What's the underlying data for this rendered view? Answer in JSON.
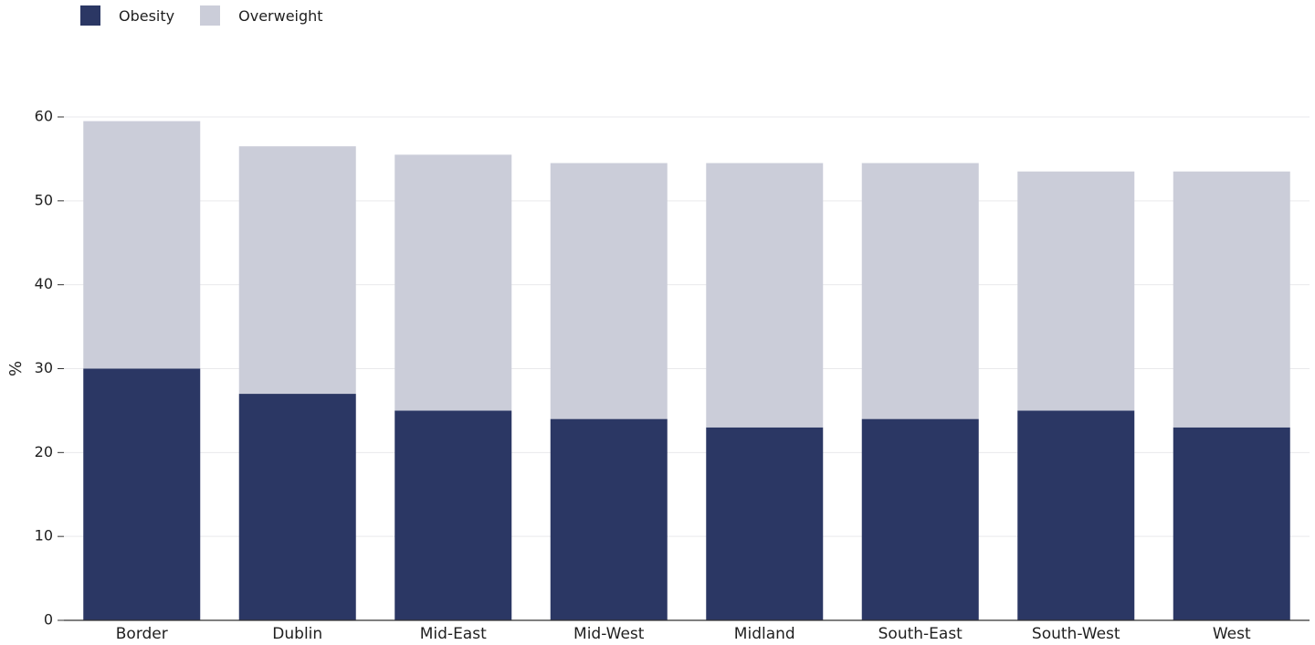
{
  "colors": {
    "obesity": "#2b3764",
    "overweight": "#cbcdd9",
    "grid": "#e9e9ec",
    "axis": "#333333",
    "text": "#1f1f1f"
  },
  "chart_data": {
    "type": "bar",
    "stacked": true,
    "categories": [
      "Border",
      "Dublin",
      "Mid-East",
      "Mid-West",
      "Midland",
      "South-East",
      "South-West",
      "West"
    ],
    "series": [
      {
        "name": "Obesity",
        "values": [
          30,
          27,
          25,
          24,
          23,
          24,
          25,
          23
        ]
      },
      {
        "name": "Overweight",
        "values": [
          29.5,
          29.5,
          30.5,
          30.5,
          31.5,
          30.5,
          28.5,
          30.5
        ]
      }
    ],
    "ylabel": "%",
    "xlabel": "",
    "ylim": [
      0,
      60
    ],
    "yticks": [
      0,
      10,
      20,
      30,
      40,
      50,
      60
    ],
    "grid": true,
    "legend_position": "top-left"
  }
}
